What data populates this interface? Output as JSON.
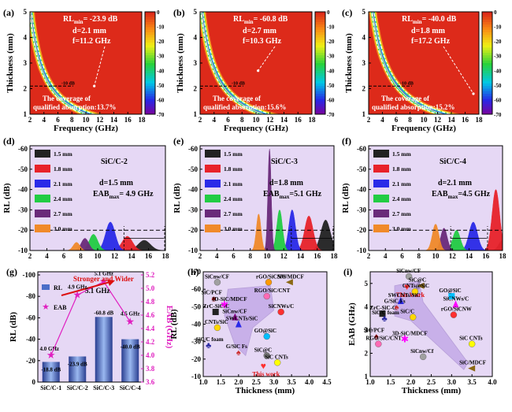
{
  "chart_data": [
    {
      "panel": "(a)",
      "type": "heatmap",
      "ylabel": "Thickness (mm)",
      "xlabel": "Frequency (GHz)",
      "xlim": [
        2,
        18
      ],
      "ylim": [
        1,
        5
      ],
      "xticks": [
        "2",
        "4",
        "6",
        "8",
        "10",
        "12",
        "14",
        "16",
        "18"
      ],
      "yticks": [
        "1",
        "2",
        "3",
        "4",
        "5"
      ],
      "colorbar": [
        "0",
        "-10",
        "-20",
        "-30",
        "-40",
        "-50",
        "-60",
        "-70"
      ],
      "annotation": [
        "RL",
        "min",
        "= -23.9 dB",
        "d=2.1 mm",
        "f=11.2 GHz"
      ],
      "ref_label": "-10 dB",
      "note": [
        "The coverage of",
        "qualified absorption:13.7%"
      ],
      "kfactor": 10.5,
      "min_point": [
        11.2,
        2.1
      ]
    },
    {
      "panel": "(b)",
      "type": "heatmap",
      "ylabel": "Thickness (mm)",
      "xlabel": "Frequency (GHz)",
      "xlim": [
        2,
        18
      ],
      "ylim": [
        1,
        5
      ],
      "xticks": [
        "2",
        "4",
        "6",
        "8",
        "10",
        "12",
        "14",
        "16",
        "18"
      ],
      "yticks": [
        "1",
        "2",
        "3",
        "4",
        "5"
      ],
      "colorbar": [
        "0",
        "-10",
        "-20",
        "-30",
        "-40",
        "-50",
        "-60",
        "-70"
      ],
      "annotation": [
        "RL",
        "min",
        "= -60.8 dB",
        "d=2.7 mm",
        "f=10.3 GHz"
      ],
      "ref_label": "-10 dB",
      "note": [
        "The coverage of",
        "qualified absorption:15.6%"
      ],
      "kfactor": 11.3,
      "min_point": [
        10.3,
        2.7
      ]
    },
    {
      "panel": "(c)",
      "type": "heatmap",
      "ylabel": "Thickness (mm)",
      "xlabel": "Frequency (GHz)",
      "xlim": [
        2,
        18
      ],
      "ylim": [
        1,
        5
      ],
      "xticks": [
        "2",
        "4",
        "6",
        "8",
        "10",
        "12",
        "14",
        "16",
        "18"
      ],
      "yticks": [
        "1",
        "2",
        "3",
        "4",
        "5"
      ],
      "colorbar": [
        "0",
        "-10",
        "-20",
        "-30",
        "-40",
        "-50",
        "-60",
        "-70"
      ],
      "annotation": [
        "RL",
        "min",
        "= -40.0 dB",
        "d=1.8 mm",
        "f=17.2 GHz"
      ],
      "ref_label": "-10 dB",
      "note": [
        "The coverage of",
        "qualified absorption:15.2%"
      ],
      "kfactor": 13.0,
      "min_point": [
        17.2,
        1.8
      ]
    },
    {
      "panel": "(d)",
      "type": "area",
      "ylabel": "RL (dB)",
      "xlim": [
        2,
        18
      ],
      "ylim": [
        -10,
        -60
      ],
      "xticks": [
        "2",
        "4",
        "6",
        "8",
        "10",
        "12",
        "14",
        "16",
        "18"
      ],
      "yticks": [
        "-10",
        "-20",
        "-30",
        "-40",
        "-50",
        "-60"
      ],
      "title": "SiC/C-2",
      "info": [
        "d=1.5 mm",
        "EAB",
        "max",
        "= 4.9 GHz"
      ],
      "eab_range": [
        13.1,
        18
      ],
      "series": [
        {
          "name": "1.5 mm",
          "peak": 15.5,
          "value": -15,
          "width": 1.3,
          "color": "#222222"
        },
        {
          "name": "1.8 mm",
          "peak": 13.5,
          "value": -17,
          "width": 1.1,
          "color": "#e8222a"
        },
        {
          "name": "2.1 mm",
          "peak": 11.5,
          "value": -24,
          "width": 1.0,
          "color": "#2a2ae8"
        },
        {
          "name": "2.4 mm",
          "peak": 9.5,
          "value": -18,
          "width": 0.9,
          "color": "#22cc44"
        },
        {
          "name": "2.7 mm",
          "peak": 8.5,
          "value": -16,
          "width": 0.8,
          "color": "#6a2a7a"
        },
        {
          "name": "3.0 mm",
          "peak": 7.5,
          "value": -14,
          "width": 0.7,
          "color": "#f08a2a"
        }
      ]
    },
    {
      "panel": "(e)",
      "type": "area",
      "ylabel": "RL (dB)",
      "xlim": [
        2,
        18
      ],
      "ylim": [
        -10,
        -60
      ],
      "xticks": [
        "2",
        "4",
        "6",
        "8",
        "10",
        "12",
        "14",
        "16",
        "18"
      ],
      "yticks": [
        "-10",
        "-20",
        "-30",
        "-40",
        "-50",
        "-60"
      ],
      "title": "SiC/C-3",
      "info": [
        "d=1.8 mm",
        "EAB",
        "max",
        "=5.1 GHz"
      ],
      "eab_range": [
        12.9,
        18
      ],
      "series": [
        {
          "name": "1.5 mm",
          "peak": 17,
          "value": -25,
          "width": 1.0,
          "color": "#222222"
        },
        {
          "name": "1.8 mm",
          "peak": 15,
          "value": -27,
          "width": 0.9,
          "color": "#e8222a"
        },
        {
          "name": "2.1 mm",
          "peak": 13,
          "value": -30,
          "width": 0.7,
          "color": "#2a2ae8"
        },
        {
          "name": "2.4 mm",
          "peak": 11.5,
          "value": -30,
          "width": 0.6,
          "color": "#22cc44"
        },
        {
          "name": "2.7 mm",
          "peak": 10.3,
          "value": -60,
          "width": 0.35,
          "color": "#6a2a7a"
        },
        {
          "name": "3.0 mm",
          "peak": 9,
          "value": -28,
          "width": 0.5,
          "color": "#f08a2a"
        }
      ]
    },
    {
      "panel": "(f)",
      "type": "area",
      "ylabel": "RL (dB)",
      "xlim": [
        2,
        18
      ],
      "ylim": [
        -10,
        -60
      ],
      "xticks": [
        "2",
        "4",
        "6",
        "8",
        "10",
        "12",
        "14",
        "16",
        "18"
      ],
      "yticks": [
        "-10",
        "-20",
        "-30",
        "-40",
        "-50",
        "-60"
      ],
      "title": "SiC/C-4",
      "info": [
        "d=2.1 mm",
        "EAB",
        "max",
        "=4.5 GHz"
      ],
      "eab_range": [
        11.8,
        16.3
      ],
      "series": [
        {
          "name": "1.5 mm",
          "peak": 18,
          "value": -15,
          "width": 0.8,
          "color": "#222222"
        },
        {
          "name": "1.8 mm",
          "peak": 17.2,
          "value": -40,
          "width": 0.8,
          "color": "#e8222a"
        },
        {
          "name": "2.1 mm",
          "peak": 14.5,
          "value": -24,
          "width": 0.9,
          "color": "#2a2ae8"
        },
        {
          "name": "2.4 mm",
          "peak": 12.5,
          "value": -20,
          "width": 0.8,
          "color": "#22cc44"
        },
        {
          "name": "2.7 mm",
          "peak": 11,
          "value": -21,
          "width": 0.7,
          "color": "#6a2a7a"
        },
        {
          "name": "3.0 mm",
          "peak": 10,
          "value": -23,
          "width": 0.7,
          "color": "#f08a2a"
        }
      ]
    },
    {
      "panel": "(g)",
      "type": "bar",
      "categories": [
        "SiC/C-1",
        "SiC/C-2",
        "SiC/C-3",
        "SiC/C-4"
      ],
      "series": [
        {
          "name": "RL",
          "values": [
            -18.8,
            -23.9,
            -60.8,
            -40.0
          ]
        },
        {
          "name": "EAB",
          "values": [
            4.0,
            4.9,
            5.1,
            4.5
          ]
        }
      ],
      "bar_labels": [
        "-18.8 dB",
        "-23.9 dB",
        "-60.8 dB",
        "-40.0 dB"
      ],
      "eab_labels": [
        "4.0 GHz",
        "4.9 GHz",
        "5.1 GHz",
        "4.5 GHz"
      ],
      "ylabel": "RL (dB)",
      "y2label": "EAB (GHz)",
      "ylim": [
        0,
        -100
      ],
      "y2lim": [
        3.6,
        5.2
      ],
      "yticks": [
        "0",
        "-20",
        "-40",
        "-60",
        "-80",
        "-100"
      ],
      "y2ticks": [
        "3.6",
        "3.8",
        "4.0",
        "4.2",
        "4.4",
        "4.6",
        "4.8",
        "5.0",
        "5.2"
      ],
      "annotation": "Stronger and Wider"
    },
    {
      "panel": "(h)",
      "type": "scatter",
      "xlabel": "Thickness (mm)",
      "ylabel": "RL (dB)",
      "xlim": [
        1.0,
        4.5
      ],
      "ylim": [
        -10,
        -70
      ],
      "xticks": [
        "1.0",
        "1.5",
        "2.0",
        "2.5",
        "3.0",
        "3.5",
        "4.0",
        "4.5"
      ],
      "yticks": [
        "-10",
        "-20",
        "-30",
        "-40",
        "-50",
        "-60",
        "-70"
      ],
      "points": [
        {
          "label": "SiCnw/CF",
          "x": 1.4,
          "y": -64,
          "color": "#a0a0a0",
          "shape": "circle"
        },
        {
          "label": "rGO/SiCNW",
          "x": 2.85,
          "y": -64,
          "color": "#ff9900",
          "shape": "circle"
        },
        {
          "label": "SiC/MDCF",
          "x": 3.45,
          "y": -64,
          "color": "#8b6914",
          "shape": "tri-left"
        },
        {
          "label": "SiC/PCF",
          "x": 1.3,
          "y": -55,
          "color": "#8b0000",
          "shape": "spade"
        },
        {
          "label": "3D-SiC/MDCF",
          "x": 1.6,
          "y": -51,
          "color": "#ff00ff",
          "shape": "star"
        },
        {
          "label": "RGO/SiC/CNT",
          "x": 2.8,
          "y": -56,
          "color": "#ff69b4",
          "shape": "circle"
        },
        {
          "label": "ZrC-SiC-C",
          "x": 1.35,
          "y": -47,
          "color": "#222222",
          "shape": "square"
        },
        {
          "label": "SiCnw/CF",
          "x": 1.9,
          "y": -44,
          "color": "#800080",
          "shape": "triangle"
        },
        {
          "label": "SiCNWs/C",
          "x": 3.2,
          "y": -47,
          "color": "#ff3030",
          "shape": "circle"
        },
        {
          "label": "SWCNTs/SiC",
          "x": 2.0,
          "y": -40,
          "color": "#2a2ae8",
          "shape": "triangle"
        },
        {
          "label": "CNTs/SiC",
          "x": 1.4,
          "y": -38,
          "color": "#ffd700",
          "shape": "circle"
        },
        {
          "label": "GO@SiC",
          "x": 2.8,
          "y": -33,
          "color": "#00bfff",
          "shape": "circle"
        },
        {
          "label": "SiC/C foam",
          "x": 1.15,
          "y": -28,
          "color": "#2a2aa0",
          "shape": "club"
        },
        {
          "label": "SiC@C",
          "x": 2.8,
          "y": -22,
          "color": "#777777",
          "shape": "circle"
        },
        {
          "label": "G/SiC Fs",
          "x": 2.0,
          "y": -24,
          "color": "#cc3030",
          "shape": "spade"
        },
        {
          "label": "SiC CNTs",
          "x": 3.1,
          "y": -18,
          "color": "#ffff00",
          "shape": "circle"
        },
        {
          "label": "This work",
          "x": 2.7,
          "y": -16,
          "color": "#ff3030",
          "shape": "heart"
        }
      ]
    },
    {
      "panel": "(i)",
      "type": "scatter",
      "xlabel": "Thickness (mm)",
      "ylabel": "EAB (GHz)",
      "xlim": [
        1.0,
        4.0
      ],
      "ylim": [
        1.0,
        5.5
      ],
      "xticks": [
        "1.0",
        "1.5",
        "2.0",
        "2.5",
        "3.0",
        "3.5",
        "4.0"
      ],
      "yticks": [
        "1",
        "2",
        "3",
        "4",
        "5"
      ],
      "points": [
        {
          "label": "SiCnw/CF",
          "x": 1.95,
          "y": 5.3,
          "color": "#a0a0a0",
          "shape": "circle"
        },
        {
          "label": "SiC@C",
          "x": 2.25,
          "y": 4.9,
          "color": "#8b6914",
          "shape": "tri-left"
        },
        {
          "label": "This Work",
          "x": 1.9,
          "y": 4.85,
          "color": "#ff3030",
          "shape": "heart"
        },
        {
          "label": "CNTs@SiC",
          "x": 2.1,
          "y": 4.65,
          "color": "#ffd700",
          "shape": "circle"
        },
        {
          "label": "SWCNTs/SiC",
          "x": 1.75,
          "y": 4.25,
          "color": "#2a2ae8",
          "shape": "triangle"
        },
        {
          "label": "G/SiC Fs",
          "x": 1.65,
          "y": 4.0,
          "color": "#cc3030",
          "shape": "spade"
        },
        {
          "label": "ZrC-SiC-C",
          "x": 1.3,
          "y": 3.7,
          "color": "#222222",
          "shape": "square"
        },
        {
          "label": "SiC/C foam",
          "x": 1.35,
          "y": 3.5,
          "color": "#2a2aa0",
          "shape": "club"
        },
        {
          "label": "SiC/C",
          "x": 2.05,
          "y": 3.55,
          "color": "#ffd700",
          "shape": "circle"
        },
        {
          "label": "GO@SiC",
          "x": 3.0,
          "y": 4.45,
          "color": "#00bfff",
          "shape": "square"
        },
        {
          "label": "SiCNWs/C",
          "x": 3.1,
          "y": 4.1,
          "color": "#ff00ff",
          "shape": "triangle"
        },
        {
          "label": "rGO/SiCNW",
          "x": 3.05,
          "y": 3.65,
          "color": "#ff3030",
          "shape": "circle"
        },
        {
          "label": "SiC/PCF",
          "x": 1.15,
          "y": 2.75,
          "color": "#8b0000",
          "shape": "spade"
        },
        {
          "label": "3D-SiC/MDCF",
          "x": 1.85,
          "y": 2.6,
          "color": "#ff00ff",
          "shape": "star"
        },
        {
          "label": "RGO/SiC/CNT",
          "x": 1.2,
          "y": 2.4,
          "color": "#ff69b4",
          "shape": "circle"
        },
        {
          "label": "SiCnw/Cf",
          "x": 2.3,
          "y": 1.85,
          "color": "#a0a0a0",
          "shape": "circle"
        },
        {
          "label": "SiC CNTs",
          "x": 3.5,
          "y": 2.4,
          "color": "#ffff00",
          "shape": "circle"
        },
        {
          "label": "SiC/MDCF",
          "x": 3.5,
          "y": 1.35,
          "color": "#8b6914",
          "shape": "tri-left"
        }
      ]
    }
  ],
  "colors": {
    "panel_bg": "#e6d8f5",
    "map_bg": "#dd2a1a",
    "bar": "#4a6ec8",
    "eab": "#e020c0",
    "arrow": "#dd1010"
  }
}
